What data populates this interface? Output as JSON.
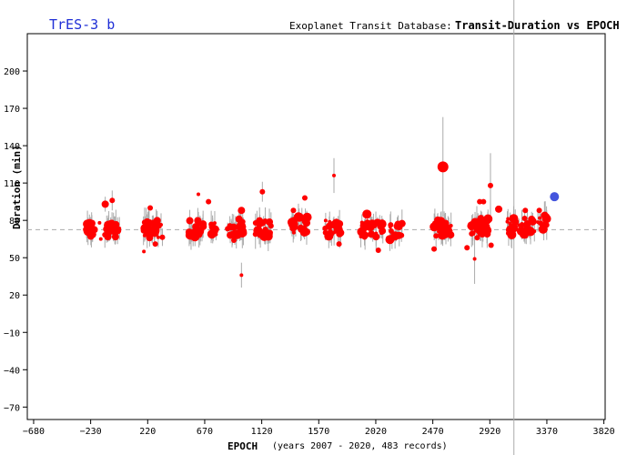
{
  "header": {
    "planet": "TrES-3 b",
    "database": "Exoplanet Transit Database:",
    "chart_title": "Transit-Duration vs EPOCH"
  },
  "axes": {
    "xlabel": "EPOCH",
    "xsub": "(years 2007 - 2020, 483 records)",
    "ylabel": "Duration (min)"
  },
  "colors": {
    "points": "#ff0000",
    "highlight": "#4455dd",
    "title": "#1f2fd6",
    "errorbar": "#aaaaaa",
    "refline": "#aaaaaa"
  },
  "chart_data": {
    "type": "scatter",
    "title": "Transit-Duration vs EPOCH",
    "xlabel": "EPOCH",
    "ylabel": "Duration (min)",
    "xlim": [
      -730,
      3830
    ],
    "ylim": [
      -80,
      230
    ],
    "xticks": [
      -680,
      -230,
      220,
      670,
      1120,
      1570,
      2020,
      2470,
      2920,
      3370,
      3820
    ],
    "yticks": [
      -70,
      -40,
      -10,
      20,
      50,
      80,
      110,
      140,
      170,
      200
    ],
    "reference_line_y": 72.5,
    "vertical_line_x": 3110,
    "grid": false,
    "clusters": [
      {
        "x0": -270,
        "x1": -200,
        "y": 73,
        "n": 14
      },
      {
        "x0": -130,
        "x1": 10,
        "y": 72,
        "n": 22
      },
      {
        "x0": 180,
        "x1": 340,
        "y": 73,
        "n": 28
      },
      {
        "x0": 540,
        "x1": 660,
        "y": 73,
        "n": 24
      },
      {
        "x0": 720,
        "x1": 780,
        "y": 72,
        "n": 10
      },
      {
        "x0": 850,
        "x1": 980,
        "y": 75,
        "n": 26
      },
      {
        "x0": 1060,
        "x1": 1210,
        "y": 74,
        "n": 22
      },
      {
        "x0": 1340,
        "x1": 1480,
        "y": 76,
        "n": 24
      },
      {
        "x0": 1620,
        "x1": 1750,
        "y": 74,
        "n": 16
      },
      {
        "x0": 1900,
        "x1": 2080,
        "y": 73,
        "n": 28
      },
      {
        "x0": 2130,
        "x1": 2230,
        "y": 71,
        "n": 14
      },
      {
        "x0": 2480,
        "x1": 2620,
        "y": 74,
        "n": 26
      },
      {
        "x0": 2760,
        "x1": 2910,
        "y": 75,
        "n": 28
      },
      {
        "x0": 3050,
        "x1": 3280,
        "y": 75,
        "n": 36
      },
      {
        "x0": 3290,
        "x1": 3370,
        "y": 78,
        "n": 12
      }
    ],
    "outliers": [
      {
        "x": -115,
        "y": 93,
        "s": 4,
        "eh": 6
      },
      {
        "x": -60,
        "y": 96,
        "s": 3,
        "eh": 8
      },
      {
        "x": -160,
        "y": 78,
        "s": 2
      },
      {
        "x": -150,
        "y": 65,
        "s": 2
      },
      {
        "x": 190,
        "y": 55,
        "s": 2
      },
      {
        "x": 240,
        "y": 90,
        "s": 3
      },
      {
        "x": 280,
        "y": 61,
        "s": 3
      },
      {
        "x": 620,
        "y": 101,
        "s": 2
      },
      {
        "x": 700,
        "y": 95,
        "s": 3
      },
      {
        "x": 960,
        "y": 36,
        "s": 2,
        "eh": 10
      },
      {
        "x": 960,
        "y": 88,
        "s": 4
      },
      {
        "x": 900,
        "y": 64,
        "s": 3
      },
      {
        "x": 1125,
        "y": 103,
        "s": 3,
        "eh": 8
      },
      {
        "x": 1460,
        "y": 98,
        "s": 3
      },
      {
        "x": 1370,
        "y": 88,
        "s": 3
      },
      {
        "x": 1690,
        "y": 116,
        "s": 2,
        "eh": 14
      },
      {
        "x": 1730,
        "y": 61,
        "s": 3
      },
      {
        "x": 1950,
        "y": 85,
        "s": 5
      },
      {
        "x": 2040,
        "y": 56,
        "s": 3
      },
      {
        "x": 2550,
        "y": 123,
        "s": 6,
        "eh": 40
      },
      {
        "x": 2480,
        "y": 57,
        "s": 3
      },
      {
        "x": 2740,
        "y": 58,
        "s": 3
      },
      {
        "x": 2800,
        "y": 49,
        "s": 2,
        "eh": 20
      },
      {
        "x": 2820,
        "y": 66,
        "s": 3
      },
      {
        "x": 2840,
        "y": 95,
        "s": 3
      },
      {
        "x": 2870,
        "y": 95,
        "s": 3
      },
      {
        "x": 2925,
        "y": 108,
        "s": 3,
        "eh": 26
      },
      {
        "x": 2930,
        "y": 60,
        "s": 3
      },
      {
        "x": 2990,
        "y": 89,
        "s": 4
      },
      {
        "x": 3200,
        "y": 88,
        "s": 3
      },
      {
        "x": 3310,
        "y": 88,
        "s": 3
      }
    ],
    "highlight_point": {
      "x": 3430,
      "y": 99,
      "s": 5
    }
  }
}
